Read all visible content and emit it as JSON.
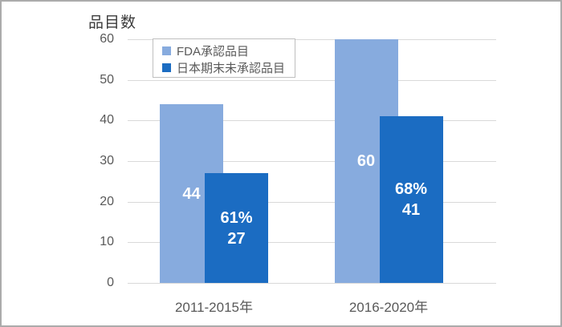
{
  "window": {
    "background": "#ffffff",
    "border_color": "#ababab"
  },
  "chart_data": {
    "type": "bar",
    "title": "品目数",
    "ylabel": "品目数",
    "xlabel": "",
    "categories": [
      "2011-2015年",
      "2016-2020年"
    ],
    "series": [
      {
        "name": "FDA承認品目",
        "color": "#87abde",
        "values": [
          44,
          60
        ],
        "bar_labels": [
          [
            "44"
          ],
          [
            "60"
          ]
        ]
      },
      {
        "name": "日本期末未承認品目",
        "color": "#1b6cc2",
        "values": [
          27,
          41
        ],
        "bar_labels": [
          [
            "61%",
            "27"
          ],
          [
            "68%",
            "41"
          ]
        ]
      }
    ],
    "y_ticks": [
      0,
      10,
      20,
      30,
      40,
      50,
      60
    ],
    "ylim": [
      0,
      60
    ],
    "grid": true,
    "gridline_color": "#d9d9d9",
    "axis_text_color": "#595959",
    "bar_label_color": "#ffffff",
    "legend_position": "top-left-inside",
    "legend_border_color": "#bfbfbf"
  }
}
